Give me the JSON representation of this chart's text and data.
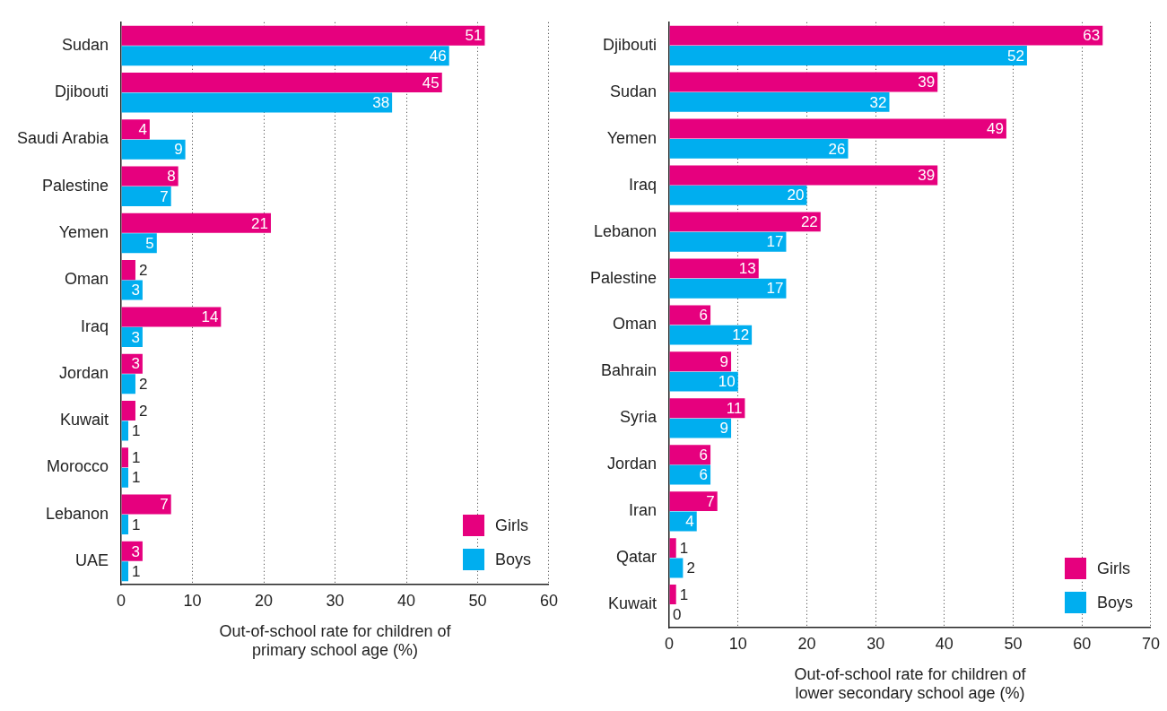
{
  "chart_data": [
    {
      "type": "bar",
      "orientation": "horizontal",
      "categories": [
        "Sudan",
        "Djibouti",
        "Saudi Arabia",
        "Palestine",
        "Yemen",
        "Oman",
        "Iraq",
        "Jordan",
        "Kuwait",
        "Morocco",
        "Lebanon",
        "UAE"
      ],
      "series": [
        {
          "name": "Girls",
          "color": "#e6007e",
          "values": [
            51,
            45,
            4,
            8,
            21,
            2,
            14,
            3,
            2,
            1,
            7,
            3
          ]
        },
        {
          "name": "Boys",
          "color": "#00aeef",
          "values": [
            46,
            38,
            9,
            7,
            5,
            3,
            3,
            2,
            1,
            1,
            1,
            1
          ]
        }
      ],
      "xlim": [
        0,
        60
      ],
      "xticks": [
        0,
        10,
        20,
        30,
        40,
        50,
        60
      ],
      "xlabel": "Out-of-school rate for children of\nprimary school age (%)",
      "grid": "x",
      "legend": "bottom right",
      "data_labels": true
    },
    {
      "type": "bar",
      "orientation": "horizontal",
      "categories": [
        "Djibouti",
        "Sudan",
        "Yemen",
        "Iraq",
        "Lebanon",
        "Palestine",
        "Oman",
        "Bahrain",
        "Syria",
        "Jordan",
        "Iran",
        "Qatar",
        "Kuwait"
      ],
      "series": [
        {
          "name": "Girls",
          "color": "#e6007e",
          "values": [
            63,
            39,
            49,
            39,
            22,
            13,
            6,
            9,
            11,
            6,
            7,
            1,
            1
          ]
        },
        {
          "name": "Boys",
          "color": "#00aeef",
          "values": [
            52,
            32,
            26,
            20,
            17,
            17,
            12,
            10,
            9,
            6,
            4,
            2,
            0
          ]
        }
      ],
      "xlim": [
        0,
        70
      ],
      "xticks": [
        0,
        10,
        20,
        30,
        40,
        50,
        60,
        70
      ],
      "xlabel": "Out-of-school rate for children of\nlower secondary school age (%)",
      "grid": "x",
      "legend": "bottom right",
      "data_labels": true
    }
  ]
}
